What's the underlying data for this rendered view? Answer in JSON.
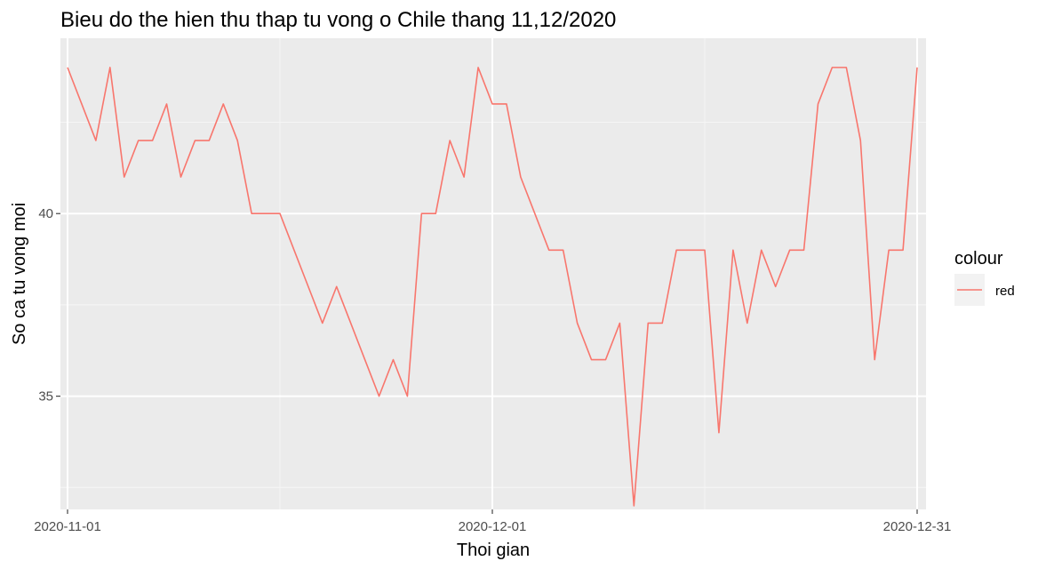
{
  "chart_data": {
    "type": "line",
    "title": "Bieu do the hien thu thap tu vong o Chile thang 11,12/2020",
    "xlabel": "Thoi gian",
    "ylabel": "So ca tu vong moi",
    "x_start": "2020-11-01",
    "x_ticks": [
      "2020-11-01",
      "2020-12-01",
      "2020-12-31"
    ],
    "y_ticks": [
      35,
      40
    ],
    "ylim": [
      31.9,
      44.8
    ],
    "grid": true,
    "legend": {
      "title": "colour",
      "position": "right",
      "entries": [
        "red"
      ]
    },
    "series": [
      {
        "name": "red",
        "color": "#F8766D",
        "values": [
          44,
          43,
          42,
          44,
          41,
          42,
          42,
          43,
          41,
          42,
          42,
          43,
          42,
          40,
          40,
          40,
          39,
          38,
          37,
          38,
          37,
          36,
          35,
          36,
          35,
          40,
          40,
          42,
          41,
          44,
          43,
          43,
          41,
          40,
          39,
          39,
          37,
          36,
          36,
          37,
          32,
          37,
          37,
          39,
          39,
          39,
          34,
          39,
          37,
          39,
          38,
          39,
          39,
          43,
          44,
          44,
          42,
          36,
          39,
          39,
          44
        ]
      }
    ]
  },
  "colors": {
    "panel_bg": "#EBEBEB",
    "grid_major": "#FFFFFF",
    "grid_minor": "#F5F5F5",
    "series": "#F8766D",
    "legend_key_bg": "#F2F2F2"
  }
}
